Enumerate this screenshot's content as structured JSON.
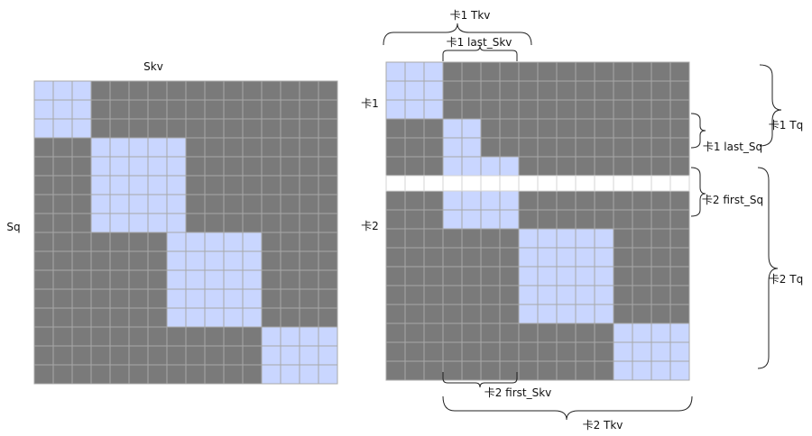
{
  "left_matrix": {
    "col_label": "Skv",
    "row_label": "Sq",
    "rows": 16,
    "cols": 16,
    "blocks": [
      {
        "rows": [
          0,
          2
        ],
        "cols": [
          0,
          2
        ]
      },
      {
        "rows": [
          3,
          7
        ],
        "cols": [
          3,
          7
        ]
      },
      {
        "rows": [
          8,
          12
        ],
        "cols": [
          7,
          11
        ]
      },
      {
        "rows": [
          13,
          16
        ],
        "cols": [
          12,
          16
        ]
      }
    ]
  },
  "right_matrix": {
    "rows": 16,
    "cols": 16,
    "split_after_row": 5,
    "blocks": [
      {
        "rows": [
          0,
          2
        ],
        "cols": [
          0,
          2
        ]
      },
      {
        "rows": [
          3,
          4
        ],
        "cols": [
          3,
          4
        ]
      },
      {
        "rows": [
          5,
          7
        ],
        "cols": [
          3,
          6
        ]
      },
      {
        "rows": [
          8,
          12
        ],
        "cols": [
          7,
          11
        ]
      },
      {
        "rows": [
          13,
          16
        ],
        "cols": [
          12,
          16
        ]
      }
    ],
    "row_labels": [
      "卡1",
      "卡2"
    ],
    "annotations": {
      "card1_tkv": "卡1 Tkv",
      "card1_last_skv": "卡1 last_Skv",
      "card1_tq": "卡1 Tq",
      "card1_last_sq": "卡1 last_Sq",
      "card2_first_sq": "卡2 first_Sq",
      "card2_tq": "卡2 Tq",
      "card2_first_skv": "卡2  first_Skv",
      "card2_tkv": "卡2 Tkv"
    }
  },
  "colors": {
    "masked": "#7a7a7a",
    "active": "#c9d6ff",
    "grid_line": "#a8a8a8",
    "divider": "#ffffff"
  }
}
